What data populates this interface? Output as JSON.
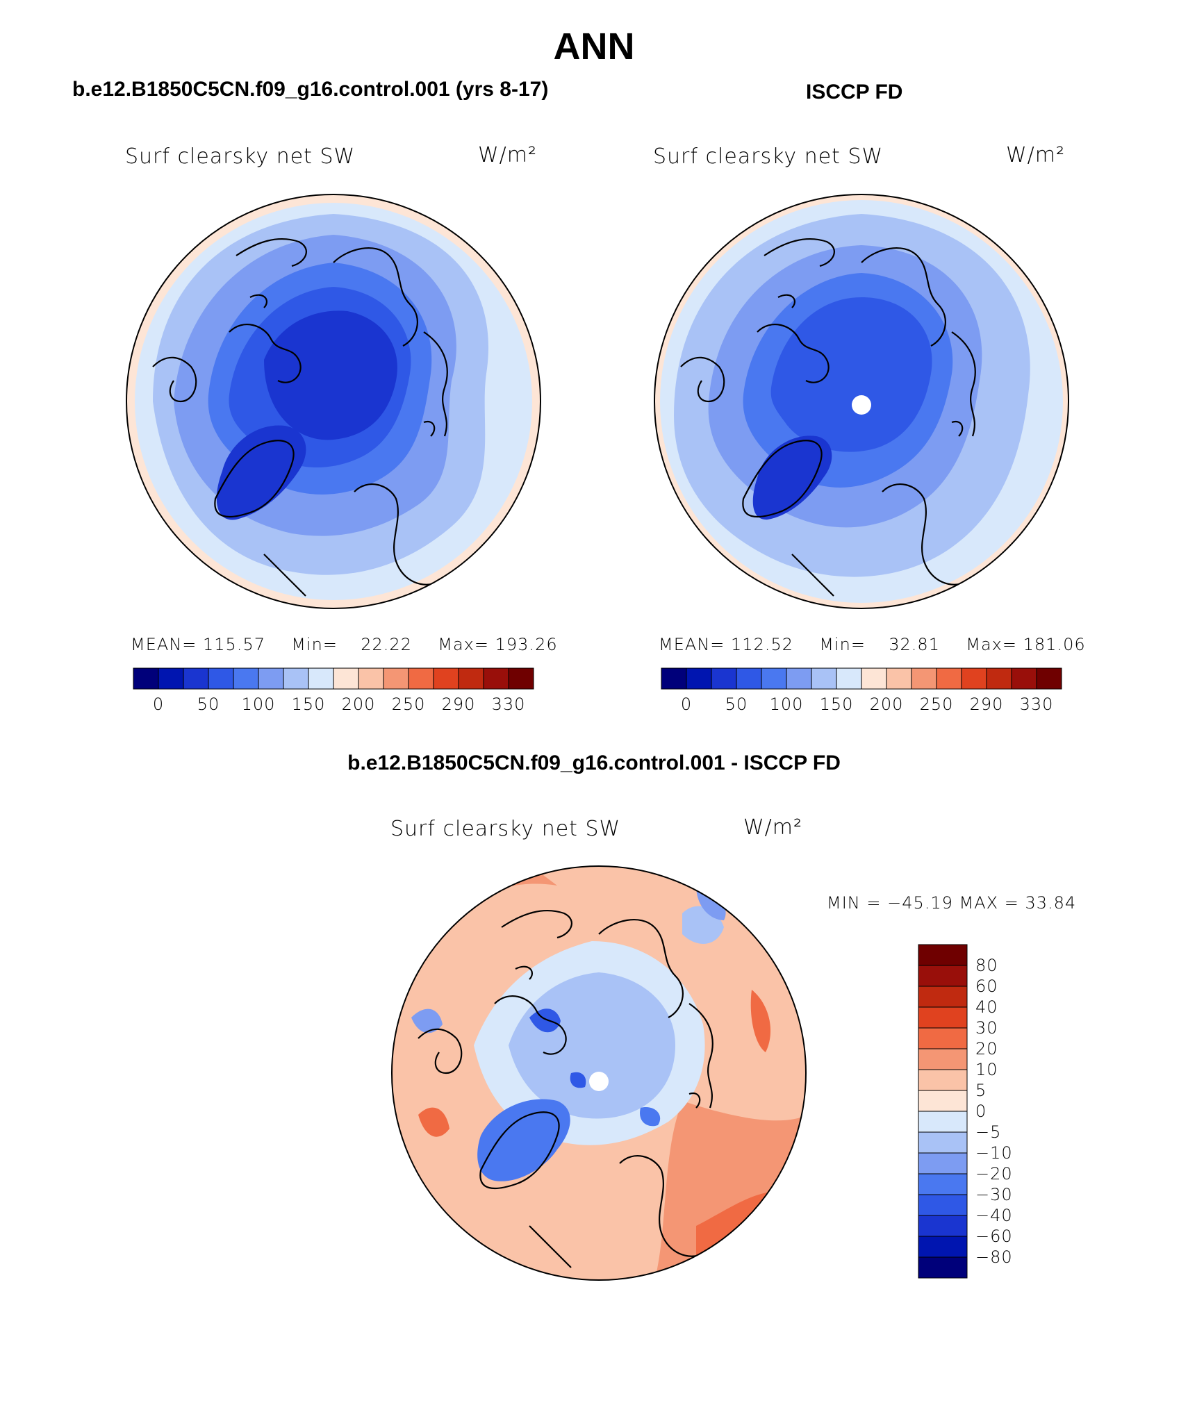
{
  "main_title": "ANN",
  "colors": {
    "abs_scale": [
      "#00007a",
      "#0015b0",
      "#1a35d0",
      "#2f58e6",
      "#4a78f0",
      "#7d9cf2",
      "#a9c2f6",
      "#d8e8fb",
      "#fde5d6",
      "#fac3a8",
      "#f49674",
      "#f06a43",
      "#e0421f",
      "#c02a10",
      "#990f0a",
      "#6f0000"
    ],
    "diff_scale": [
      "#00007a",
      "#0015b0",
      "#1a35d0",
      "#2f58e6",
      "#4a78f0",
      "#7d9cf2",
      "#a9c2f6",
      "#d8e8fb",
      "#fde5d6",
      "#fac3a8",
      "#f49674",
      "#f06a43",
      "#e0421f",
      "#c02a10",
      "#990f0a",
      "#6f0000"
    ]
  },
  "panels": {
    "model": {
      "header": "b.e12.B1850C5CN.f09_g16.control.001 (yrs 8-17)",
      "var_title": "Surf clearsky net SW",
      "units": "W/m²",
      "mean_label": "MEAN=",
      "mean": "115.57",
      "min_label": "Min=",
      "min": "22.22",
      "max_label": "Max=",
      "max": "193.26",
      "ticks": [
        "0",
        "50",
        "100",
        "150",
        "200",
        "250",
        "290",
        "330"
      ]
    },
    "obs": {
      "header": "ISCCP FD",
      "var_title": "Surf clearsky net SW",
      "units": "W/m²",
      "mean_label": "MEAN=",
      "mean": "112.52",
      "min_label": "Min=",
      "min": "32.81",
      "max_label": "Max=",
      "max": "181.06",
      "ticks": [
        "0",
        "50",
        "100",
        "150",
        "200",
        "250",
        "290",
        "330"
      ]
    },
    "diff": {
      "header": "b.e12.B1850C5CN.f09_g16.control.001 - ISCCP FD",
      "var_title": "Surf clearsky net SW",
      "units": "W/m²",
      "minmax": "MIN = −45.19 MAX =   33.84",
      "ticks": [
        "80",
        "60",
        "40",
        "30",
        "20",
        "10",
        "5",
        "0",
        "−5",
        "−10",
        "−20",
        "−30",
        "−40",
        "−60",
        "−80"
      ]
    }
  }
}
